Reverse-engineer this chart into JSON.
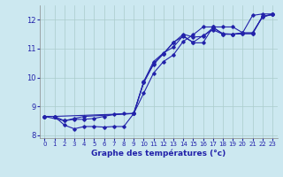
{
  "xlabel": "Graphe des températures (°c)",
  "background_color": "#cce8f0",
  "grid_color": "#aacccc",
  "line_color": "#2222aa",
  "xlim": [
    -0.5,
    23.5
  ],
  "ylim": [
    7.9,
    12.5
  ],
  "xticks": [
    0,
    1,
    2,
    3,
    4,
    5,
    6,
    7,
    8,
    9,
    10,
    11,
    12,
    13,
    14,
    15,
    16,
    17,
    18,
    19,
    20,
    21,
    22,
    23
  ],
  "yticks": [
    8,
    9,
    10,
    11,
    12
  ],
  "series1_x": [
    0,
    1,
    2,
    3,
    4,
    5,
    6,
    7,
    8,
    9,
    10,
    11,
    12,
    13,
    14,
    15,
    16,
    17,
    18,
    19,
    20,
    21,
    22,
    23
  ],
  "series1_y": [
    8.65,
    8.65,
    8.35,
    8.22,
    8.3,
    8.3,
    8.28,
    8.3,
    8.3,
    8.75,
    9.85,
    10.55,
    10.85,
    11.05,
    11.45,
    11.2,
    11.2,
    11.75,
    11.5,
    11.5,
    11.55,
    12.15,
    12.2,
    12.2
  ],
  "series2_x": [
    0,
    1,
    2,
    3,
    4,
    5,
    6,
    7,
    8,
    9,
    10,
    11,
    12,
    13,
    14,
    15,
    16,
    17,
    18,
    19,
    20,
    21,
    22,
    23
  ],
  "series2_y": [
    8.65,
    8.65,
    8.5,
    8.55,
    8.55,
    8.58,
    8.65,
    8.72,
    8.75,
    8.75,
    9.45,
    10.15,
    10.55,
    10.78,
    11.25,
    11.48,
    11.75,
    11.75,
    11.75,
    11.75,
    11.55,
    11.55,
    12.1,
    12.2
  ],
  "series3_x": [
    0,
    1,
    9,
    10,
    11,
    12,
    13,
    14,
    15,
    16,
    17,
    18,
    19,
    20,
    21,
    22,
    23
  ],
  "series3_y": [
    8.65,
    8.65,
    8.75,
    9.82,
    10.45,
    10.82,
    11.2,
    11.5,
    11.4,
    11.42,
    11.72,
    11.52,
    11.5,
    11.52,
    11.52,
    12.1,
    12.18
  ],
  "series4_x": [
    0,
    2,
    3,
    4,
    9,
    10,
    11,
    12,
    13,
    14,
    15,
    16,
    17,
    18,
    19,
    20,
    21,
    22,
    23
  ],
  "series4_y": [
    8.65,
    8.5,
    8.58,
    8.65,
    8.75,
    9.82,
    10.48,
    10.82,
    11.22,
    11.42,
    11.22,
    11.45,
    11.65,
    11.5,
    11.5,
    11.52,
    11.52,
    12.12,
    12.18
  ]
}
